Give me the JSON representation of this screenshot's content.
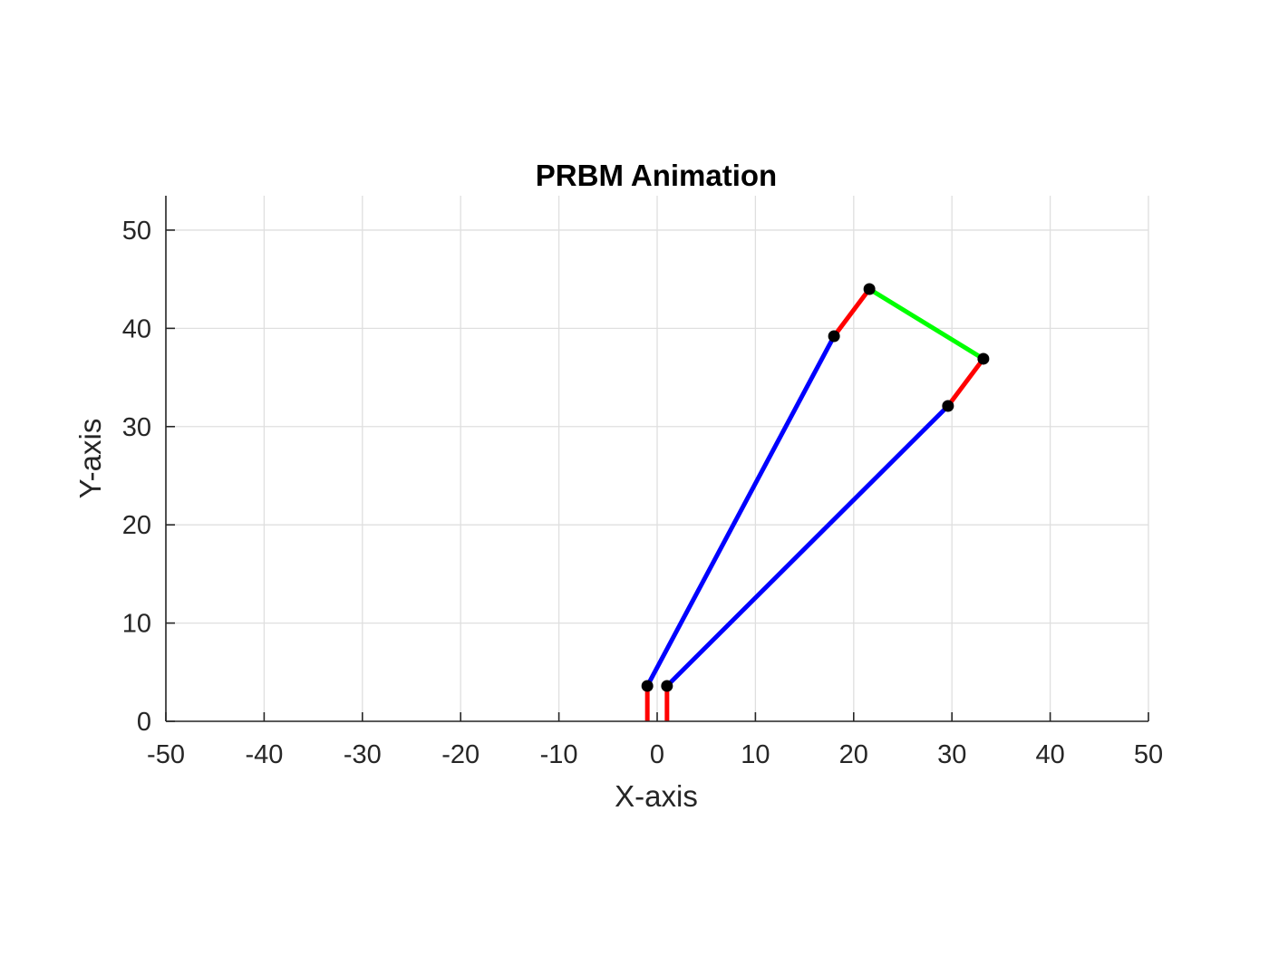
{
  "chart_data": {
    "type": "line",
    "title": "PRBM Animation",
    "xlabel": "X-axis",
    "ylabel": "Y-axis",
    "xlim": [
      -50,
      50
    ],
    "ylim": [
      0,
      53.5
    ],
    "grid": true,
    "xticks": [
      -50,
      -40,
      -30,
      -20,
      -10,
      0,
      10,
      20,
      30,
      40,
      50
    ],
    "yticks": [
      0,
      10,
      20,
      30,
      40,
      50
    ],
    "xtick_labels": [
      "-50",
      "-40",
      "-30",
      "-20",
      "-10",
      "0",
      "10",
      "20",
      "30",
      "40",
      "50"
    ],
    "ytick_labels": [
      "0",
      "10",
      "20",
      "30",
      "40",
      "50"
    ],
    "colors": {
      "axis": "#262626",
      "grid": "#dfdfdf",
      "points": "#000000"
    },
    "series": [
      {
        "color": "#ff0000",
        "x": [
          -1.0,
          -1.0
        ],
        "y": [
          0,
          3.6
        ]
      },
      {
        "color": "#ff0000",
        "x": [
          1.0,
          1.0
        ],
        "y": [
          0,
          3.6
        ]
      },
      {
        "color": "#0000ff",
        "x": [
          -1.0,
          18.0
        ],
        "y": [
          3.6,
          39.2
        ]
      },
      {
        "color": "#0000ff",
        "x": [
          1.0,
          29.6
        ],
        "y": [
          3.6,
          32.1
        ]
      },
      {
        "color": "#ff0000",
        "x": [
          18.0,
          21.6
        ],
        "y": [
          39.2,
          44.0
        ]
      },
      {
        "color": "#ff0000",
        "x": [
          29.6,
          33.2
        ],
        "y": [
          32.1,
          36.9
        ]
      },
      {
        "color": "#00ff00",
        "x": [
          21.6,
          33.2
        ],
        "y": [
          44.0,
          36.9
        ]
      }
    ],
    "points": {
      "x": [
        -1.0,
        1.0,
        18.0,
        21.6,
        33.2,
        29.6
      ],
      "y": [
        3.6,
        3.6,
        39.2,
        44.0,
        36.9,
        32.1
      ]
    }
  }
}
